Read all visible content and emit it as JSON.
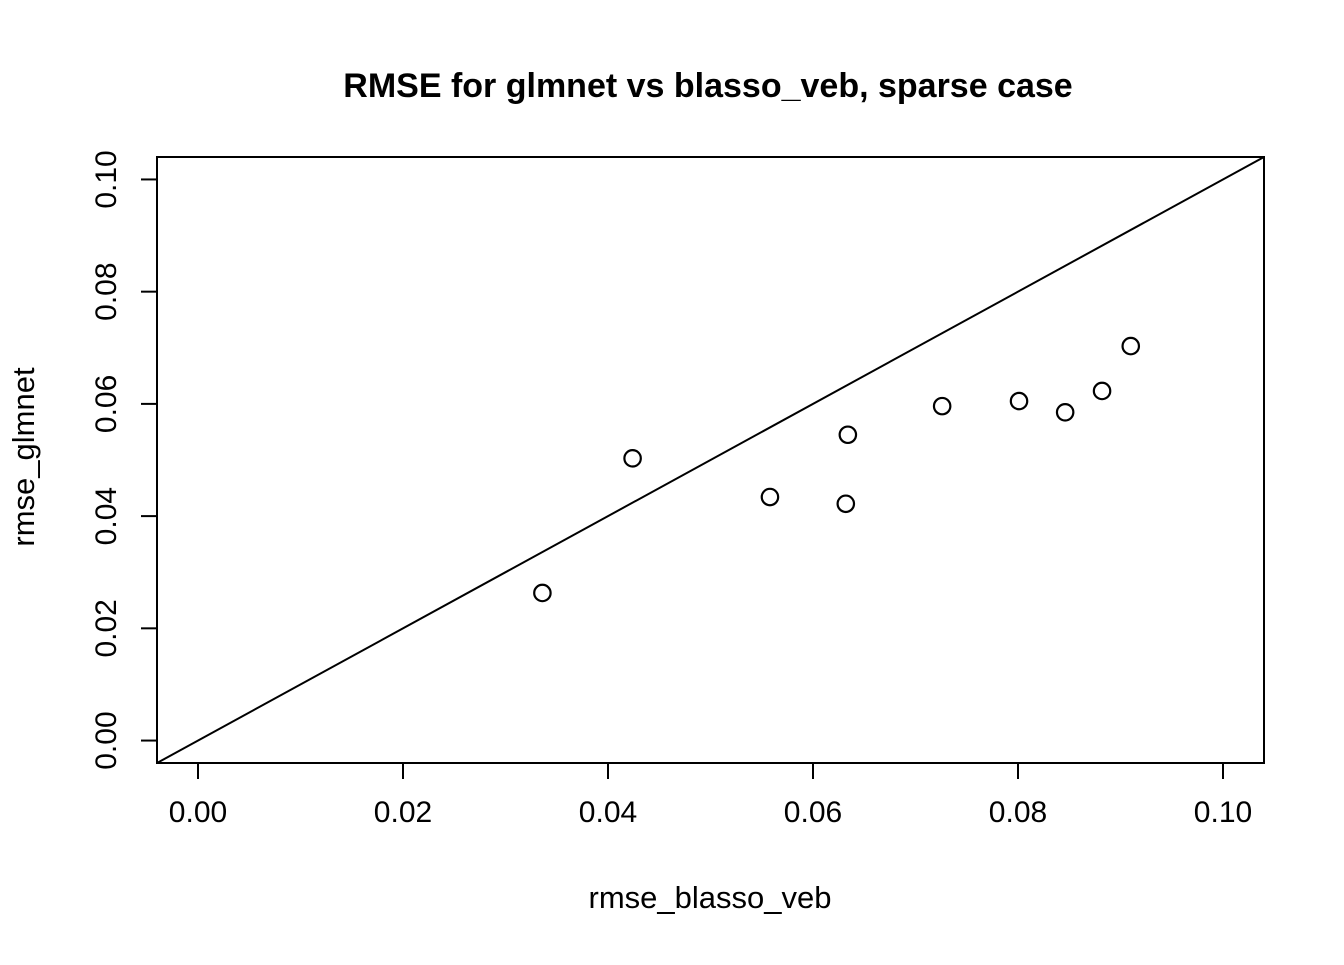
{
  "colors": {
    "foreground": "#000000",
    "background": "#ffffff"
  },
  "chart_data": {
    "type": "scatter",
    "title": "RMSE for glmnet vs blasso_veb, sparse case",
    "xlabel": "rmse_blasso_veb",
    "ylabel": "rmse_glmnet",
    "xlim": [
      -0.004,
      0.104
    ],
    "ylim": [
      -0.004,
      0.104
    ],
    "grid": false,
    "legend": "none",
    "marker": "open-circle",
    "x_ticks": [
      {
        "value": 0.0,
        "label": "0.00"
      },
      {
        "value": 0.02,
        "label": "0.02"
      },
      {
        "value": 0.04,
        "label": "0.04"
      },
      {
        "value": 0.06,
        "label": "0.06"
      },
      {
        "value": 0.08,
        "label": "0.08"
      },
      {
        "value": 0.1,
        "label": "0.10"
      }
    ],
    "y_ticks": [
      {
        "value": 0.0,
        "label": "0.00"
      },
      {
        "value": 0.02,
        "label": "0.02"
      },
      {
        "value": 0.04,
        "label": "0.04"
      },
      {
        "value": 0.06,
        "label": "0.06"
      },
      {
        "value": 0.08,
        "label": "0.08"
      },
      {
        "value": 0.1,
        "label": "0.10"
      }
    ],
    "reference_line": {
      "kind": "identity",
      "slope": 1,
      "intercept": 0
    },
    "points": [
      {
        "x": 0.0336,
        "y": 0.0263
      },
      {
        "x": 0.0424,
        "y": 0.0503
      },
      {
        "x": 0.0558,
        "y": 0.0434
      },
      {
        "x": 0.0632,
        "y": 0.0422
      },
      {
        "x": 0.0634,
        "y": 0.0545
      },
      {
        "x": 0.0726,
        "y": 0.0596
      },
      {
        "x": 0.0801,
        "y": 0.0605
      },
      {
        "x": 0.0846,
        "y": 0.0585
      },
      {
        "x": 0.0882,
        "y": 0.0623
      },
      {
        "x": 0.091,
        "y": 0.0703
      }
    ]
  }
}
